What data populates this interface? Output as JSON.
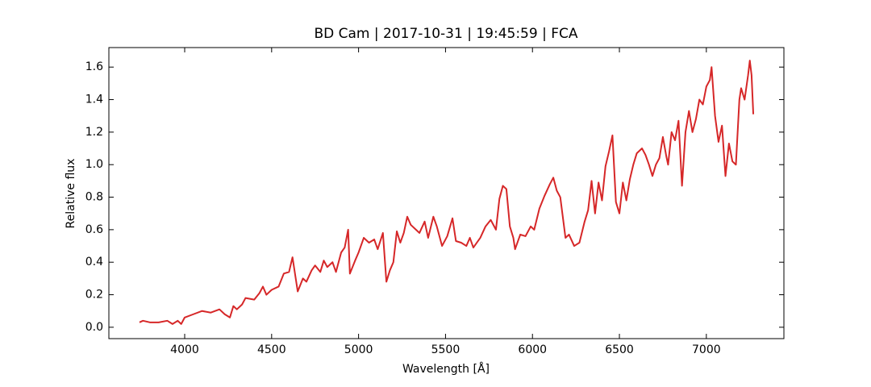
{
  "chart_data": {
    "type": "line",
    "title": "BD Cam | 2017-10-31 | 19:45:59 | FCA",
    "x_label": "Wavelength [Å]",
    "y_label": "Relative flux",
    "xlim": [
      3564,
      7446
    ],
    "ylim": [
      -0.07,
      1.72
    ],
    "xticks": [
      4000,
      4500,
      5000,
      5500,
      6000,
      6500,
      7000
    ],
    "yticks": [
      {
        "value": 0,
        "label": "0.0"
      },
      0.2,
      0.4,
      0.6,
      0.8,
      {
        "value": 1,
        "label": "1.0"
      },
      1.2,
      1.4,
      1.6
    ],
    "x": [
      3740,
      3760,
      3800,
      3850,
      3900,
      3930,
      3960,
      3980,
      4000,
      4050,
      4100,
      4150,
      4200,
      4230,
      4260,
      4280,
      4300,
      4330,
      4350,
      4400,
      4430,
      4450,
      4470,
      4500,
      4540,
      4570,
      4600,
      4620,
      4650,
      4680,
      4700,
      4730,
      4750,
      4780,
      4800,
      4820,
      4850,
      4870,
      4900,
      4920,
      4940,
      4950,
      4980,
      5000,
      5030,
      5060,
      5090,
      5110,
      5140,
      5160,
      5180,
      5200,
      5220,
      5240,
      5260,
      5280,
      5300,
      5330,
      5350,
      5380,
      5400,
      5430,
      5450,
      5480,
      5510,
      5540,
      5560,
      5590,
      5620,
      5640,
      5660,
      5700,
      5730,
      5760,
      5790,
      5810,
      5830,
      5850,
      5870,
      5890,
      5900,
      5930,
      5960,
      5990,
      6010,
      6040,
      6070,
      6100,
      6120,
      6140,
      6160,
      6190,
      6210,
      6240,
      6270,
      6300,
      6320,
      6340,
      6360,
      6380,
      6400,
      6420,
      6440,
      6460,
      6480,
      6500,
      6520,
      6540,
      6560,
      6580,
      6600,
      6630,
      6650,
      6670,
      6690,
      6710,
      6730,
      6750,
      6770,
      6780,
      6800,
      6820,
      6840,
      6860,
      6880,
      6900,
      6920,
      6940,
      6960,
      6980,
      7000,
      7020,
      7030,
      7050,
      7070,
      7090,
      7110,
      7130,
      7150,
      7170,
      7190,
      7200,
      7220,
      7240,
      7250,
      7260,
      7270
    ],
    "series": [
      {
        "name": "BD Cam",
        "color": "#d62728",
        "values": [
          0.03,
          0.04,
          0.03,
          0.03,
          0.04,
          0.02,
          0.04,
          0.02,
          0.06,
          0.08,
          0.1,
          0.09,
          0.11,
          0.08,
          0.06,
          0.13,
          0.11,
          0.14,
          0.18,
          0.17,
          0.21,
          0.25,
          0.2,
          0.23,
          0.25,
          0.33,
          0.34,
          0.43,
          0.22,
          0.3,
          0.28,
          0.35,
          0.38,
          0.34,
          0.41,
          0.37,
          0.4,
          0.34,
          0.46,
          0.49,
          0.6,
          0.33,
          0.41,
          0.46,
          0.55,
          0.52,
          0.54,
          0.48,
          0.58,
          0.28,
          0.35,
          0.4,
          0.59,
          0.52,
          0.58,
          0.68,
          0.63,
          0.6,
          0.58,
          0.65,
          0.55,
          0.68,
          0.62,
          0.5,
          0.56,
          0.67,
          0.53,
          0.52,
          0.5,
          0.55,
          0.49,
          0.55,
          0.62,
          0.66,
          0.6,
          0.79,
          0.87,
          0.85,
          0.62,
          0.55,
          0.48,
          0.57,
          0.56,
          0.62,
          0.6,
          0.73,
          0.81,
          0.88,
          0.92,
          0.84,
          0.8,
          0.55,
          0.57,
          0.5,
          0.52,
          0.65,
          0.72,
          0.9,
          0.7,
          0.89,
          0.78,
          0.99,
          1.08,
          1.18,
          0.77,
          0.7,
          0.89,
          0.78,
          0.91,
          1.0,
          1.07,
          1.1,
          1.06,
          1.0,
          0.93,
          1.0,
          1.04,
          1.17,
          1.05,
          1.0,
          1.2,
          1.15,
          1.27,
          0.87,
          1.2,
          1.33,
          1.2,
          1.28,
          1.4,
          1.37,
          1.48,
          1.52,
          1.6,
          1.3,
          1.14,
          1.24,
          0.93,
          1.13,
          1.02,
          1.0,
          1.4,
          1.47,
          1.4,
          1.55,
          1.64,
          1.55,
          1.31
        ]
      }
    ]
  }
}
